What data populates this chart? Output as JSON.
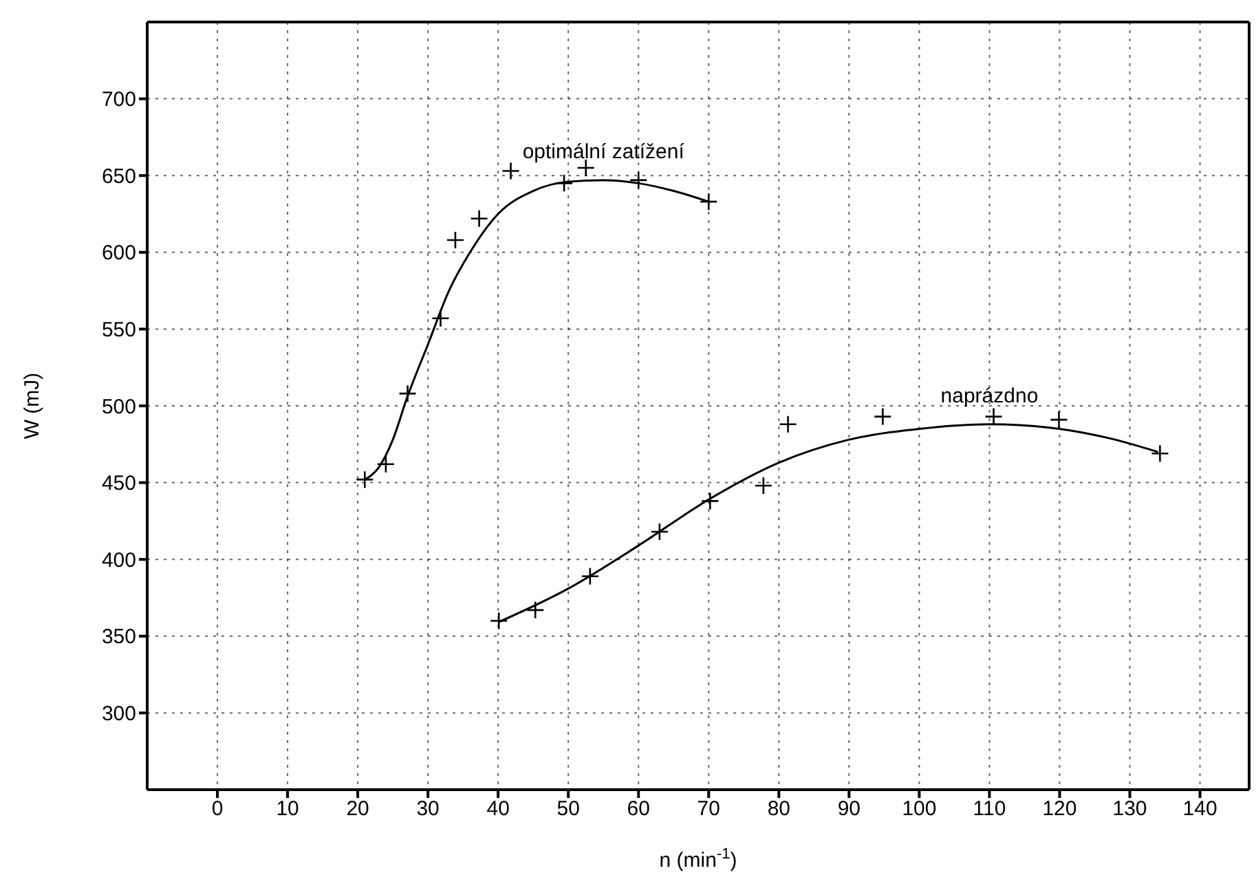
{
  "chart_data": {
    "type": "scatter",
    "xlabel": "n (min$^{-1}$)",
    "ylabel": "W (mJ)",
    "xlim": [
      -10,
      147
    ],
    "ylim": [
      250,
      750
    ],
    "xticks": [
      0,
      10,
      20,
      30,
      40,
      50,
      60,
      70,
      80,
      90,
      100,
      110,
      120,
      130,
      140
    ],
    "yticks": [
      300,
      350,
      400,
      450,
      500,
      550,
      600,
      650,
      700
    ],
    "grid": true,
    "marker": "cross",
    "series": [
      {
        "color": "#000000",
        "x": [
          21,
          24,
          27.1,
          31.8,
          33.9,
          37.3,
          41.8,
          49.4,
          52.5,
          60,
          70
        ],
        "values": [
          452,
          462,
          508,
          557,
          608,
          622,
          653,
          645,
          655,
          647,
          633
        ]
      },
      {
        "type": "line",
        "name": "optimální zatížení",
        "color": "#000000",
        "marker": "none",
        "line_style": "solid",
        "x": [
          21,
          23,
          25,
          27,
          30,
          33,
          36,
          40,
          45,
          50,
          55,
          60,
          65,
          70
        ],
        "values": [
          452,
          460,
          478,
          505,
          540,
          575,
          600,
          625,
          640,
          646,
          647,
          645,
          640,
          633
        ]
      },
      {
        "color": "#000000",
        "x": [
          40.1,
          45.3,
          53.1,
          63,
          70.2,
          77.8,
          81.3,
          94.8,
          110.6,
          119.9,
          134.3
        ],
        "values": [
          360,
          367,
          389,
          418,
          438,
          448,
          488,
          493,
          493,
          491,
          469
        ]
      },
      {
        "type": "line",
        "name": "naprázdno",
        "color": "#000000",
        "marker": "none",
        "line_style": "solid",
        "x": [
          40,
          50,
          60,
          70,
          80,
          90,
          100,
          110,
          120,
          127,
          134
        ],
        "values": [
          359,
          381,
          409,
          439,
          463,
          478,
          485,
          488,
          485,
          479,
          470
        ]
      }
    ]
  }
}
